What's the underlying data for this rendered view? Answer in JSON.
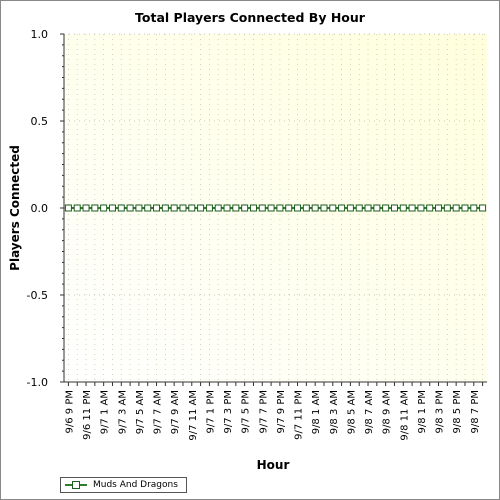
{
  "chart_data": {
    "type": "line",
    "title": "Total Players Connected By Hour",
    "xlabel": "Hour",
    "ylabel": "Players Connected",
    "ylim": [
      -1.0,
      1.0
    ],
    "yticks": [
      "1.0",
      "0.5",
      "0.0",
      "-0.5",
      "-1.0"
    ],
    "y_tick_values": [
      1.0,
      0.5,
      0.0,
      -0.5,
      -1.0
    ],
    "x_tick_labels": [
      "9/6 9 PM",
      "9/6 11 PM",
      "9/7 1 AM",
      "9/7 3 AM",
      "9/7 5 AM",
      "9/7 7 AM",
      "9/7 9 AM",
      "9/7 11 AM",
      "9/7 1 PM",
      "9/7 3 PM",
      "9/7 5 PM",
      "9/7 7 PM",
      "9/7 9 PM",
      "9/7 11 PM",
      "9/8 1 AM",
      "9/8 3 AM",
      "9/8 5 AM",
      "9/8 7 AM",
      "9/8 9 AM",
      "9/8 11 AM",
      "9/8 1 PM",
      "9/8 3 PM",
      "9/8 5 PM",
      "9/8 7 PM"
    ],
    "series": [
      {
        "name": "Muds And Dragons",
        "color": "#2d7d2d",
        "x": [
          "9/6 9 PM",
          "9/6 10 PM",
          "9/6 11 PM",
          "9/7 12 AM",
          "9/7 1 AM",
          "9/7 2 AM",
          "9/7 3 AM",
          "9/7 4 AM",
          "9/7 5 AM",
          "9/7 6 AM",
          "9/7 7 AM",
          "9/7 8 AM",
          "9/7 9 AM",
          "9/7 10 AM",
          "9/7 11 AM",
          "9/7 12 PM",
          "9/7 1 PM",
          "9/7 2 PM",
          "9/7 3 PM",
          "9/7 4 PM",
          "9/7 5 PM",
          "9/7 6 PM",
          "9/7 7 PM",
          "9/7 8 PM",
          "9/7 9 PM",
          "9/7 10 PM",
          "9/7 11 PM",
          "9/8 12 AM",
          "9/8 1 AM",
          "9/8 2 AM",
          "9/8 3 AM",
          "9/8 4 AM",
          "9/8 5 AM",
          "9/8 6 AM",
          "9/8 7 AM",
          "9/8 8 AM",
          "9/8 9 AM",
          "9/8 10 AM",
          "9/8 11 AM",
          "9/8 12 PM",
          "9/8 1 PM",
          "9/8 2 PM",
          "9/8 3 PM",
          "9/8 4 PM",
          "9/8 5 PM",
          "9/8 6 PM",
          "9/8 7 PM",
          "9/8 8 PM"
        ],
        "values": [
          0,
          0,
          0,
          0,
          0,
          0,
          0,
          0,
          0,
          0,
          0,
          0,
          0,
          0,
          0,
          0,
          0,
          0,
          0,
          0,
          0,
          0,
          0,
          0,
          0,
          0,
          0,
          0,
          0,
          0,
          0,
          0,
          0,
          0,
          0,
          0,
          0,
          0,
          0,
          0,
          0,
          0,
          0,
          0,
          0,
          0,
          0,
          0
        ]
      }
    ],
    "legend_position": "bottom-left",
    "grid": true,
    "background_gradient": [
      "#ffffdd",
      "#ffffff"
    ]
  }
}
